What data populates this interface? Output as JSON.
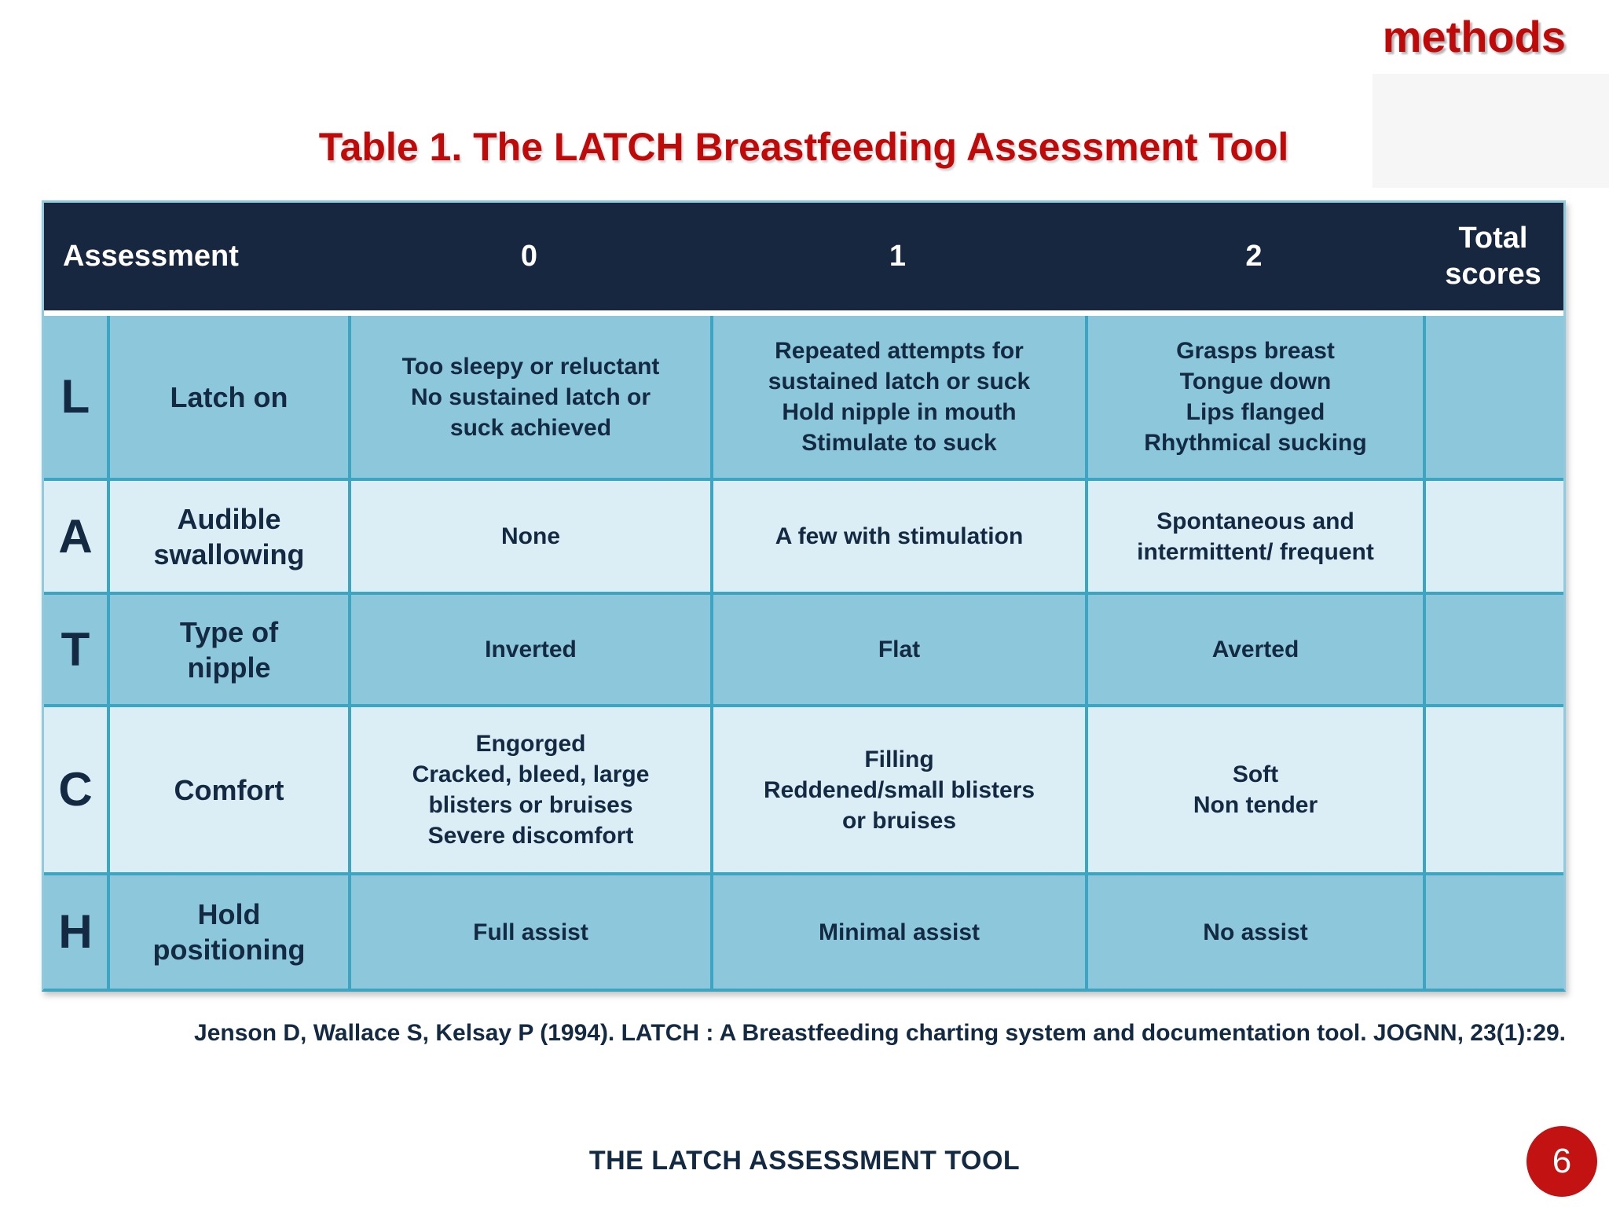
{
  "slide": {
    "section_label": "methods",
    "title": "Table 1. The LATCH Breastfeeding Assessment Tool",
    "citation": "Jenson D, Wallace S, Kelsay P (1994). LATCH : A Breastfeeding charting system and documentation tool. JOGNN, 23(1):29.",
    "footer_title": "THE LATCH ASSESSMENT TOOL",
    "page_number": "6"
  },
  "colors": {
    "accent_red": "#C00A0A",
    "header_navy": "#16273F",
    "text_navy": "#132A42",
    "row_medium_blue": "#8DC7DB",
    "row_light_blue": "#DCEEF5",
    "grid_teal": "#3BA5C2",
    "outer_border_blue": "#8ECBDF",
    "page_circle_red": "#C21212"
  },
  "table": {
    "header": {
      "assessment": "Assessment",
      "score0": "0",
      "score1": "1",
      "score2": "2",
      "total": "Total\nscores"
    },
    "rows": [
      {
        "letter": "L",
        "name": "Latch on",
        "score0": "Too sleepy or reluctant\nNo sustained latch or\nsuck achieved",
        "score1": "Repeated attempts for\nsustained latch or suck\nHold nipple in mouth\nStimulate to suck",
        "score2": "Grasps breast\nTongue down\nLips flanged\nRhythmical sucking",
        "total": ""
      },
      {
        "letter": "A",
        "name": "Audible\nswallowing",
        "score0": "None",
        "score1": "A few with stimulation",
        "score2": "Spontaneous and\nintermittent/ frequent",
        "total": ""
      },
      {
        "letter": "T",
        "name": "Type of\nnipple",
        "score0": "Inverted",
        "score1": "Flat",
        "score2": "Averted",
        "total": ""
      },
      {
        "letter": "C",
        "name": "Comfort",
        "score0": "Engorged\nCracked, bleed, large\nblisters or bruises\nSevere discomfort",
        "score1": "Filling\nReddened/small blisters\nor bruises",
        "score2": "Soft\nNon tender",
        "total": ""
      },
      {
        "letter": "H",
        "name": "Hold\npositioning",
        "score0": "Full assist",
        "score1": "Minimal assist",
        "score2": "No assist",
        "total": ""
      }
    ]
  }
}
